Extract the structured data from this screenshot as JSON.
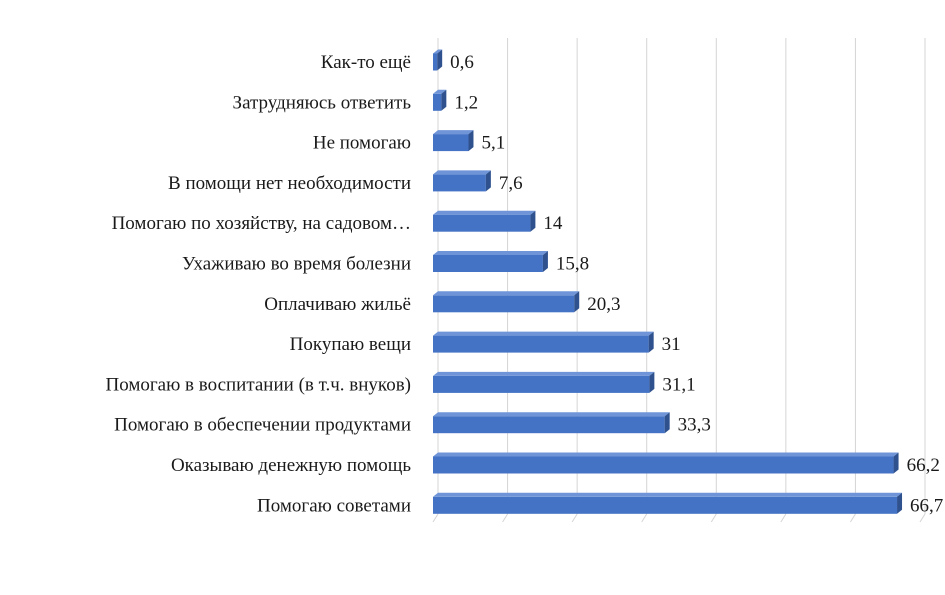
{
  "chart_data": {
    "type": "bar",
    "orientation": "horizontal",
    "style": "3d",
    "categories": [
      "Как-то ещё",
      "Затрудняюсь ответить",
      "Не помогаю",
      "В помощи нет необходимости",
      "Помогаю по хозяйству, на садовом…",
      "Ухаживаю во время болезни",
      "Оплачиваю жильё",
      "Покупаю вещи",
      "Помогаю в воспитании (в т.ч. внуков)",
      "Помогаю в обеспечении продуктами",
      "Оказываю денежную помощь",
      "Помогаю советами"
    ],
    "values": [
      0.6,
      1.2,
      5.1,
      7.6,
      14,
      15.8,
      20.3,
      31,
      31.1,
      33.3,
      66.2,
      66.7
    ],
    "value_labels": [
      "0,6",
      "1,2",
      "5,1",
      "7,6",
      "14",
      "15,8",
      "20,3",
      "31",
      "31,1",
      "33,3",
      "66,2",
      "66,7"
    ],
    "xlim": [
      0,
      70
    ],
    "x_grid_step": 10,
    "grid": true,
    "show_x_tick_labels": false,
    "title": "",
    "xlabel": "",
    "ylabel": "",
    "colors": {
      "bar_front": "#4472c4",
      "bar_top": "#6f95d8",
      "bar_side": "#2f528f",
      "grid": "#d4d4d4"
    }
  }
}
